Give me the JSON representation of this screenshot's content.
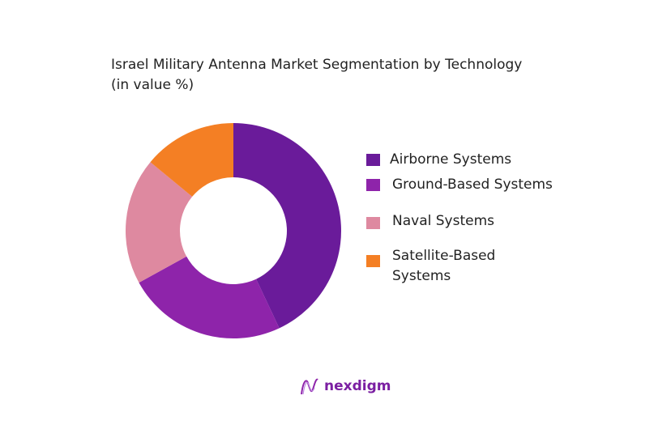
{
  "chart_data": {
    "type": "pie",
    "donut": true,
    "title": "Israel Military Antenna Market Segmentation by Technology",
    "subtitle": "(in value %)",
    "categories": [
      "Airborne Systems",
      "Ground-Based Systems",
      "Naval Systems",
      "Satellite-Based Systems"
    ],
    "values": [
      43,
      24,
      19,
      14
    ],
    "colors": [
      "#6a1b9a",
      "#8e24aa",
      "#de89a0",
      "#f47f24"
    ],
    "legend_position": "right"
  },
  "legend": {
    "satellite_line1": "Satellite-Based",
    "satellite_line2": "Systems"
  },
  "brand": {
    "name": "nexdigm",
    "icon": "nexdigm-wave-logo"
  }
}
